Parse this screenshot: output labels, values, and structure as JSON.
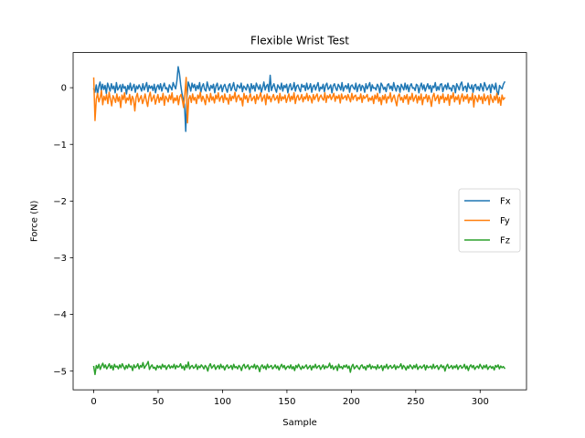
{
  "chart_data": {
    "type": "line",
    "title": "Flexible Wrist Test",
    "xlabel": "Sample",
    "ylabel": "Force (N)",
    "xlim": [
      -16,
      336
    ],
    "ylim": [
      -5.33,
      0.62
    ],
    "xticks": [
      0,
      50,
      100,
      150,
      200,
      250,
      300
    ],
    "xtick_labels": [
      "0",
      "50",
      "100",
      "150",
      "200",
      "250",
      "300"
    ],
    "yticks": [
      0,
      -1,
      -2,
      -3,
      -4,
      -5
    ],
    "ytick_labels": [
      "0",
      "−1",
      "−2",
      "−3",
      "−4",
      "−5"
    ],
    "grid": false,
    "legend_position": "center-right",
    "x_range": [
      0,
      319
    ],
    "series": [
      {
        "name": "Fx",
        "color": "#1f77b4",
        "values": [
          -0.02,
          -0.08,
          0.05,
          -0.12,
          0.02,
          0.1,
          -0.05,
          0.06,
          -0.03,
          0.04,
          -0.1,
          0.08,
          0.01,
          -0.06,
          0.07,
          -0.02,
          0.03,
          -0.09,
          0.09,
          -0.04,
          0.0,
          0.05,
          -0.07,
          0.06,
          -0.01,
          0.02,
          -0.11,
          0.04,
          -0.03,
          0.08,
          -0.05,
          0.01,
          0.06,
          -0.08,
          0.03,
          -0.02,
          0.05,
          0.0,
          -0.06,
          0.07,
          -0.04,
          0.02,
          0.09,
          -0.07,
          0.04,
          -0.01,
          0.03,
          -0.05,
          0.06,
          -0.09,
          0.01,
          0.05,
          -0.03,
          0.07,
          -0.06,
          0.02,
          0.08,
          -0.02,
          0.0,
          -0.08,
          0.05,
          0.01,
          -0.04,
          0.09,
          0.03,
          -0.02,
          0.12,
          0.37,
          0.25,
          0.05,
          -0.1,
          -0.2,
          -0.3,
          -0.77,
          -0.15,
          0.1,
          0.03,
          -0.06,
          0.08,
          0.0,
          0.06,
          -0.05,
          0.04,
          -0.02,
          0.09,
          -0.08,
          0.02,
          0.07,
          -0.03,
          -0.06,
          0.1,
          0.01,
          -0.05,
          0.04,
          -0.01,
          0.06,
          -0.09,
          0.03,
          0.08,
          -0.04,
          0.0,
          0.05,
          -0.07,
          0.02,
          0.06,
          -0.02,
          -0.08,
          0.04,
          0.07,
          -0.05,
          0.01,
          0.09,
          -0.03,
          -0.06,
          0.05,
          0.02,
          -0.01,
          0.08,
          -0.07,
          0.03,
          0.0,
          -0.04,
          0.06,
          0.01,
          -0.09,
          0.07,
          -0.02,
          0.04,
          -0.06,
          0.08,
          0.02,
          -0.03,
          0.05,
          -0.08,
          0.0,
          0.1,
          -0.04,
          0.03,
          0.06,
          -0.07,
          0.22,
          -0.05,
          0.02,
          0.07,
          -0.02,
          -0.08,
          0.05,
          0.01,
          -0.03,
          0.08,
          -0.06,
          0.04,
          0.0,
          0.06,
          -0.09,
          0.02,
          0.07,
          -0.04,
          -0.01,
          0.09,
          -0.06,
          0.03,
          0.05,
          -0.02,
          -0.07,
          0.06,
          0.01,
          0.04,
          -0.05,
          0.08,
          -0.03,
          0.0,
          0.07,
          -0.08,
          0.02,
          0.05,
          -0.04,
          0.03,
          0.09,
          -0.06,
          0.01,
          -0.02,
          0.06,
          -0.07,
          0.04,
          0.08,
          -0.03,
          0.0,
          0.05,
          -0.09,
          0.03,
          0.07,
          -0.01,
          -0.05,
          0.06,
          0.02,
          -0.04,
          0.09,
          -0.06,
          0.01,
          0.04,
          -0.02,
          0.07,
          -0.08,
          0.03,
          0.05,
          0.0,
          -0.03,
          0.08,
          -0.07,
          0.02,
          0.06,
          -0.05,
          0.04,
          0.01,
          -0.08,
          0.07,
          -0.02,
          0.03,
          0.09,
          -0.06,
          0.05,
          -0.01,
          0.0,
          -0.04,
          0.06,
          0.02,
          -0.09,
          0.08,
          0.04,
          -0.03,
          0.01,
          -0.07,
          0.05,
          0.07,
          -0.02,
          0.03,
          -0.05,
          0.09,
          0.0,
          -0.06,
          0.04,
          0.02,
          -0.08,
          0.06,
          0.01,
          -0.04,
          0.08,
          -0.03,
          0.05,
          -0.07,
          0.03,
          0.07,
          -0.01,
          0.0,
          -0.05,
          0.06,
          0.04,
          -0.09,
          0.02,
          0.08,
          -0.03,
          0.05,
          -0.06,
          0.01,
          0.07,
          -0.02,
          0.04,
          -0.08,
          0.03,
          0.0,
          0.09,
          -0.05,
          0.02,
          -0.04,
          0.06,
          0.07,
          -0.07,
          0.01,
          0.05,
          -0.03,
          0.08,
          -0.02,
          0.0,
          -0.06,
          0.04,
          0.03,
          -0.09,
          0.07,
          0.02,
          -0.04,
          0.06,
          0.1,
          -0.05,
          0.01,
          0.03,
          -0.07,
          0.08,
          0.0,
          -0.02,
          0.05,
          -0.08,
          0.04,
          0.06,
          -0.03,
          0.02,
          -0.05,
          0.07,
          0.01,
          -0.06,
          0.09,
          0.03,
          -0.04,
          0.0,
          0.05,
          -0.09,
          0.06,
          0.02,
          -0.03,
          0.08,
          -0.07,
          -0.12,
          0.04,
          0.0,
          -0.02,
          0.06,
          0.1
        ]
      },
      {
        "name": "Fy",
        "color": "#ff7f0e",
        "values": [
          0.17,
          -0.58,
          -0.2,
          -0.1,
          -0.25,
          -0.18,
          -0.05,
          -0.3,
          -0.15,
          -0.22,
          -0.12,
          -0.28,
          -0.08,
          -0.2,
          -0.32,
          -0.14,
          -0.19,
          -0.26,
          -0.11,
          -0.24,
          -0.16,
          -0.35,
          -0.13,
          -0.21,
          -0.09,
          -0.27,
          -0.18,
          -0.22,
          -0.12,
          -0.3,
          -0.15,
          -0.2,
          -0.41,
          -0.17,
          -0.1,
          -0.25,
          -0.19,
          -0.14,
          -0.28,
          -0.21,
          -0.11,
          -0.23,
          -0.33,
          -0.16,
          -0.08,
          -0.24,
          -0.18,
          -0.13,
          -0.29,
          -0.2,
          -0.12,
          -0.26,
          -0.17,
          -0.22,
          -0.1,
          -0.31,
          -0.15,
          -0.19,
          -0.25,
          -0.13,
          -0.21,
          -0.09,
          -0.27,
          -0.18,
          -0.23,
          -0.14,
          -0.3,
          -0.16,
          -0.12,
          -0.22,
          -0.35,
          -0.1,
          0.18,
          -0.62,
          -0.2,
          -0.14,
          -0.26,
          -0.11,
          -0.22,
          -0.17,
          -0.28,
          -0.13,
          -0.19,
          -0.08,
          -0.24,
          -0.15,
          -0.21,
          -0.3,
          -0.12,
          -0.18,
          -0.25,
          -0.1,
          -0.22,
          -0.16,
          -0.27,
          -0.13,
          -0.2,
          -0.09,
          -0.24,
          -0.17,
          -0.14,
          -0.26,
          -0.11,
          -0.21,
          -0.18,
          -0.29,
          -0.12,
          -0.23,
          -0.15,
          -0.19,
          -0.08,
          -0.25,
          -0.16,
          -0.13,
          -0.22,
          -0.18,
          -0.32,
          -0.1,
          -0.2,
          -0.14,
          -0.26,
          -0.17,
          -0.11,
          -0.23,
          -0.19,
          -0.15,
          -0.28,
          -0.12,
          -0.21,
          -0.16,
          -0.09,
          -0.24,
          -0.18,
          -0.13,
          -0.3,
          -0.11,
          -0.2,
          -0.15,
          -0.25,
          -0.17,
          -0.12,
          -0.22,
          -0.19,
          -0.14,
          -0.27,
          -0.1,
          -0.23,
          -0.16,
          -0.2,
          -0.13,
          -0.26,
          -0.18,
          -0.11,
          -0.24,
          -0.15,
          -0.21,
          -0.09,
          -0.28,
          -0.17,
          -0.13,
          -0.22,
          -0.19,
          -0.12,
          -0.25,
          -0.16,
          -0.2,
          -0.1,
          -0.23,
          -0.14,
          -0.18,
          -0.27,
          -0.12,
          -0.21,
          -0.15,
          -0.11,
          -0.24,
          -0.17,
          -0.13,
          -0.19,
          -0.22,
          -0.09,
          -0.26,
          -0.14,
          -0.18,
          -0.12,
          -0.21,
          -0.16,
          -0.1,
          -0.24,
          -0.15,
          -0.19,
          -0.13,
          -0.27,
          -0.11,
          -0.2,
          -0.17,
          -0.14,
          -0.22,
          -0.12,
          -0.18,
          -0.25,
          -0.1,
          -0.21,
          -0.15,
          -0.13,
          -0.23,
          -0.17,
          -0.2,
          -0.11,
          -0.26,
          -0.14,
          -0.19,
          -0.16,
          -0.12,
          -0.24,
          -0.18,
          -0.22,
          -0.15,
          -0.28,
          -0.13,
          -0.2,
          -0.1,
          -0.24,
          -0.17,
          -0.3,
          -0.14,
          -0.21,
          -0.12,
          -0.27,
          -0.16,
          -0.19,
          -0.09,
          -0.25,
          -0.18,
          -0.13,
          -0.23,
          -0.32,
          -0.15,
          -0.11,
          -0.22,
          -0.17,
          -0.26,
          -0.14,
          -0.2,
          -0.12,
          -0.29,
          -0.16,
          -0.21,
          -0.1,
          -0.24,
          -0.18,
          -0.13,
          -0.27,
          -0.15,
          -0.22,
          -0.11,
          -0.3,
          -0.17,
          -0.19,
          -0.12,
          -0.25,
          -0.14,
          -0.21,
          -0.33,
          -0.16,
          -0.1,
          -0.23,
          -0.18,
          -0.13,
          -0.28,
          -0.15,
          -0.2,
          -0.11,
          -0.26,
          -0.17,
          -0.22,
          -0.12,
          -0.31,
          -0.14,
          -0.19,
          -0.09,
          -0.25,
          -0.16,
          -0.21,
          -0.13,
          -0.29,
          -0.18,
          -0.11,
          -0.24,
          -0.15,
          -0.2,
          -0.12,
          -0.27,
          -0.17,
          -0.22,
          -0.1,
          -0.34,
          -0.14,
          -0.19,
          -0.25,
          -0.13,
          -0.21,
          -0.16,
          -0.28,
          -0.11,
          -0.23,
          -0.18,
          -0.14,
          -0.3,
          -0.12,
          -0.2,
          -0.26,
          -0.15,
          -0.22,
          -0.1,
          -0.27,
          -0.17,
          -0.31,
          -0.13,
          -0.21,
          -0.18
        ]
      },
      {
        "name": "Fz",
        "color": "#2ca02c",
        "values": [
          -4.92,
          -5.06,
          -4.9,
          -4.95,
          -4.88,
          -4.97,
          -4.91,
          -4.86,
          -4.94,
          -4.89,
          -4.96,
          -4.92,
          -4.87,
          -4.95,
          -4.9,
          -4.98,
          -4.88,
          -4.93,
          -4.91,
          -4.96,
          -4.89,
          -4.94,
          -4.87,
          -4.92,
          -4.97,
          -4.9,
          -4.95,
          -4.88,
          -4.93,
          -4.91,
          -4.99,
          -4.89,
          -4.94,
          -4.92,
          -4.87,
          -4.96,
          -4.9,
          -4.93,
          -4.85,
          -4.95,
          -4.91,
          -4.88,
          -4.83,
          -4.97,
          -4.92,
          -4.89,
          -4.95,
          -4.93,
          -4.98,
          -4.9,
          -4.94,
          -4.91,
          -4.96,
          -4.88,
          -4.93,
          -4.9,
          -4.97,
          -4.92,
          -4.89,
          -4.95,
          -4.91,
          -4.94,
          -4.88,
          -4.96,
          -4.9,
          -4.93,
          -4.92,
          -4.87,
          -4.95,
          -4.91,
          -4.98,
          -4.89,
          -4.94,
          -4.84,
          -4.96,
          -4.92,
          -4.9,
          -4.95,
          -4.93,
          -4.88,
          -4.97,
          -4.91,
          -4.94,
          -4.89,
          -4.92,
          -4.96,
          -4.9,
          -4.93,
          -5.0,
          -4.91,
          -4.87,
          -4.95,
          -4.92,
          -4.89,
          -4.97,
          -4.93,
          -4.9,
          -4.96,
          -4.88,
          -4.94,
          -4.91,
          -4.98,
          -4.92,
          -4.89,
          -4.95,
          -4.93,
          -4.9,
          -4.97,
          -4.88,
          -4.94,
          -4.92,
          -4.96,
          -4.9,
          -4.93,
          -4.99,
          -4.91,
          -4.88,
          -4.95,
          -4.92,
          -4.89,
          -4.97,
          -4.93,
          -4.91,
          -4.94,
          -4.88,
          -4.96,
          -4.9,
          -4.93,
          -5.01,
          -4.92,
          -4.89,
          -4.95,
          -4.91,
          -4.97,
          -4.88,
          -4.94,
          -4.92,
          -4.9,
          -4.96,
          -4.93,
          -4.89,
          -4.95,
          -4.91,
          -4.98,
          -4.92,
          -4.88,
          -4.94,
          -4.9,
          -4.97,
          -4.93,
          -4.91,
          -4.95,
          -4.89,
          -4.96,
          -4.92,
          -4.99,
          -4.9,
          -4.94,
          -4.88,
          -4.93,
          -4.97,
          -4.91,
          -4.95,
          -4.92,
          -4.89,
          -4.96,
          -4.93,
          -4.9,
          -4.98,
          -4.91,
          -4.94,
          -4.88,
          -4.95,
          -4.92,
          -4.9,
          -4.97,
          -4.93,
          -4.89,
          -4.96,
          -4.91,
          -4.94,
          -4.92,
          -4.86,
          -4.95,
          -4.9,
          -4.97,
          -4.93,
          -4.91,
          -4.99,
          -4.88,
          -4.94,
          -4.92,
          -4.96,
          -4.9,
          -4.93,
          -4.89,
          -4.95,
          -4.91,
          -5.02,
          -4.92,
          -4.88,
          -4.96,
          -4.93,
          -4.9,
          -4.94,
          -4.97,
          -4.91,
          -4.89,
          -4.95,
          -4.92,
          -4.98,
          -4.9,
          -4.93,
          -4.88,
          -4.96,
          -4.91,
          -4.94,
          -4.92,
          -4.97,
          -4.89,
          -4.95,
          -4.93,
          -4.9,
          -4.99,
          -4.91,
          -4.94,
          -4.88,
          -4.96,
          -4.92,
          -4.9,
          -4.95,
          -4.93,
          -4.89,
          -4.97,
          -4.91,
          -4.94,
          -4.92,
          -4.87,
          -4.96,
          -4.9,
          -4.93,
          -4.98,
          -4.91,
          -4.95,
          -4.89,
          -4.92,
          -4.96,
          -4.9,
          -4.94,
          -4.88,
          -4.97,
          -4.93,
          -4.91,
          -4.95,
          -4.92,
          -4.89,
          -4.98,
          -4.9,
          -4.94,
          -4.93,
          -4.91,
          -4.96,
          -4.88,
          -4.95,
          -4.92,
          -4.9,
          -4.97,
          -4.93,
          -4.89,
          -4.94,
          -4.91,
          -5.0,
          -4.92,
          -4.88,
          -4.95,
          -4.93,
          -4.9,
          -4.96,
          -4.91,
          -4.94,
          -4.89,
          -4.97,
          -4.92,
          -4.9,
          -4.95,
          -4.93,
          -4.88,
          -4.96,
          -4.91,
          -4.99,
          -4.92,
          -4.89,
          -4.94,
          -4.9,
          -4.97,
          -4.93,
          -4.91,
          -4.95,
          -4.88,
          -4.92,
          -4.96,
          -4.9,
          -4.94,
          -4.89,
          -4.97,
          -4.93,
          -4.91,
          -4.95,
          -4.92,
          -4.98,
          -4.9,
          -4.93,
          -4.89,
          -4.96,
          -4.91,
          -4.94,
          -4.92,
          -4.95
        ]
      }
    ]
  }
}
